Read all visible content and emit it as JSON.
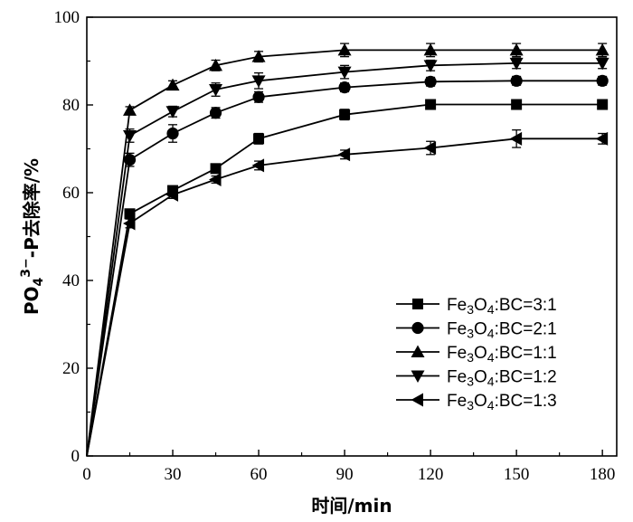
{
  "chart_data": {
    "type": "line",
    "xlabel": "时间/min",
    "ylabel_main": "PO",
    "ylabel_sub": "4",
    "ylabel_sup": "3−",
    "ylabel_rest": "-P去除率/%",
    "xlim": [
      0,
      185
    ],
    "ylim": [
      0,
      100
    ],
    "xticks": [
      0,
      30,
      60,
      90,
      120,
      150,
      180
    ],
    "yticks": [
      0,
      20,
      40,
      60,
      80,
      100
    ],
    "x": [
      0,
      15,
      30,
      45,
      60,
      90,
      120,
      150,
      180
    ],
    "legend_position": "bottom-right",
    "series": [
      {
        "name": "Fe3O4:BC=3:1",
        "label_parts": [
          "Fe",
          "3",
          "O",
          "4",
          ":BC=3:1"
        ],
        "marker": "square",
        "values": [
          0,
          55.2,
          60.5,
          65.5,
          72.3,
          77.8,
          80.1,
          80.1,
          80.1
        ],
        "errors": [
          0,
          1.0,
          0.8,
          0.8,
          1.2,
          1.2,
          1.0,
          1.0,
          1.0
        ]
      },
      {
        "name": "Fe3O4:BC=2:1",
        "label_parts": [
          "Fe",
          "3",
          "O",
          "4",
          ":BC=2:1"
        ],
        "marker": "circle",
        "values": [
          0,
          67.5,
          73.5,
          78.2,
          81.8,
          84.0,
          85.3,
          85.5,
          85.5
        ],
        "errors": [
          0,
          1.5,
          2.0,
          1.2,
          1.2,
          1.0,
          1.0,
          1.0,
          1.0
        ]
      },
      {
        "name": "Fe3O4:BC=1:1",
        "label_parts": [
          "Fe",
          "3",
          "O",
          "4",
          ":BC=1:1"
        ],
        "marker": "triangle-up",
        "values": [
          0,
          78.8,
          84.5,
          89.0,
          91.0,
          92.5,
          92.5,
          92.5,
          92.5
        ],
        "errors": [
          0,
          0.8,
          1.0,
          1.2,
          1.2,
          1.5,
          1.5,
          1.5,
          1.5
        ]
      },
      {
        "name": "Fe3O4:BC=1:2",
        "label_parts": [
          "Fe",
          "3",
          "O",
          "4",
          ":BC=1:2"
        ],
        "marker": "triangle-down",
        "values": [
          0,
          73.0,
          78.5,
          83.5,
          85.5,
          87.5,
          89.0,
          89.5,
          89.5
        ],
        "errors": [
          0,
          1.5,
          1.2,
          1.5,
          1.8,
          1.5,
          1.2,
          1.2,
          1.2
        ]
      },
      {
        "name": "Fe3O4:BC=1:3",
        "label_parts": [
          "Fe",
          "3",
          "O",
          "4",
          ":BC=1:3"
        ],
        "marker": "triangle-left",
        "values": [
          0,
          53.0,
          59.5,
          63.0,
          66.2,
          68.7,
          70.2,
          72.3,
          72.3
        ],
        "errors": [
          0,
          1.0,
          0.8,
          0.8,
          1.0,
          1.0,
          1.5,
          2.0,
          1.2
        ]
      }
    ]
  }
}
